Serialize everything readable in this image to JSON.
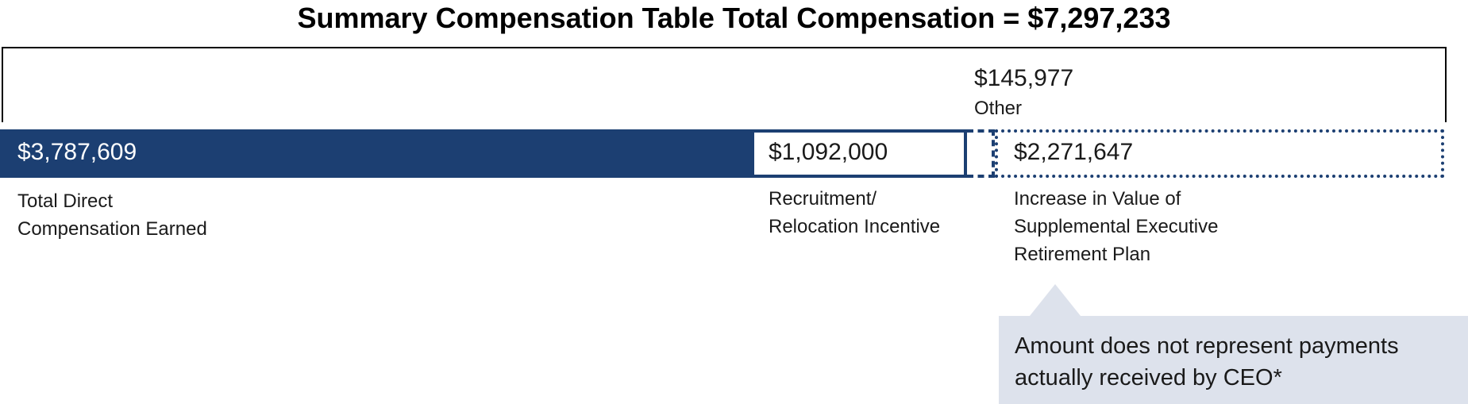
{
  "chart_data": {
    "type": "bar",
    "orientation": "horizontal-stacked",
    "title": "Summary Compensation Table Total Compensation = $7,297,233",
    "total": 7297233,
    "segments": [
      {
        "key": "tdc",
        "label": "Total Direct\nCompensation Earned",
        "value": 3787609,
        "value_label": "$3,787,609",
        "style": "solid",
        "color": "#1c3f72"
      },
      {
        "key": "rri",
        "label": "Recruitment/\nRelocation Incentive",
        "value": 1092000,
        "value_label": "$1,092,000",
        "style": "outlined",
        "color": "#1c3f72"
      },
      {
        "key": "other",
        "label": "Other",
        "value": 145977,
        "value_label": "$145,977",
        "style": "dashed",
        "color": "#1c3f72"
      },
      {
        "key": "serp",
        "label": "Increase in Value of\nSupplemental Executive\nRetirement Plan",
        "value": 2271647,
        "value_label": "$2,271,647",
        "style": "dotted",
        "color": "#1c3f72"
      }
    ],
    "annotation": "Amount does not represent payments actually received by CEO*"
  }
}
